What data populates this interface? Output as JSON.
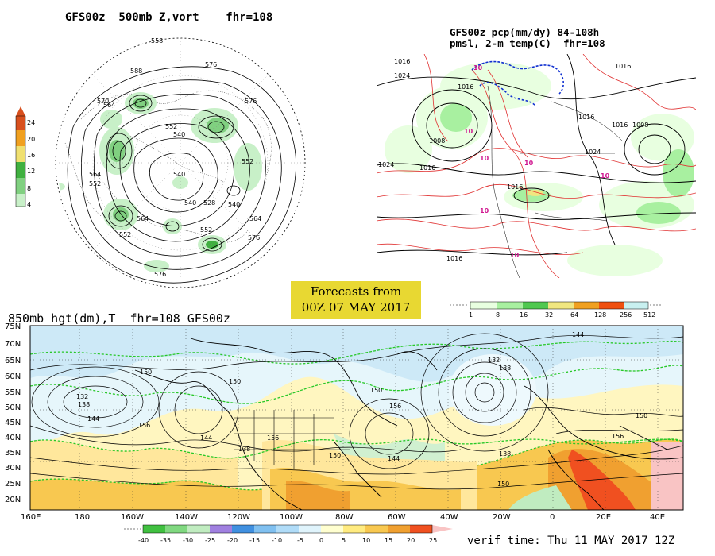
{
  "panels": {
    "vort": {
      "title": "GFS00z  500mb Z,vort    fhr=108",
      "colorbar": {
        "ticks": [
          "24",
          "20",
          "16",
          "12",
          "8",
          "4"
        ],
        "colors": [
          "#d8501e",
          "#f0a020",
          "#f0e070",
          "#40b040",
          "#80d080",
          "#c8f0c8"
        ]
      },
      "contour_labels": [
        "558",
        "576",
        "588",
        "570",
        "564",
        "552",
        "540",
        "564",
        "552",
        "540",
        "564",
        "552",
        "576",
        "576",
        "564",
        "552",
        "576",
        "540",
        "528",
        "540",
        "552"
      ]
    },
    "pcp": {
      "title_line1": "GFS00z pcp(mm/dy) 84-108h",
      "title_line2": "pmsl, 2-m temp(C)  fhr=108",
      "isobar_labels": [
        "1016",
        "1024",
        "1016",
        "1008",
        "1024",
        "1016",
        "1016",
        "1016",
        "1008",
        "1016",
        "1024",
        "1016",
        "1016"
      ],
      "temp_labels": [
        "10",
        "10",
        "10",
        "10",
        "10",
        "10",
        "10"
      ],
      "colorbar": {
        "ticks": [
          "1",
          "8",
          "16",
          "32",
          "64",
          "128",
          "256",
          "512"
        ],
        "colors": [
          "#e8ffe0",
          "#a8f0a0",
          "#50c850",
          "#f0e680",
          "#f0a020",
          "#f05010",
          "#c8f0f0"
        ]
      }
    },
    "h850": {
      "title": "850mb hgt(dm),T  fhr=108 GFS00z",
      "lat_labels": [
        "75N",
        "70N",
        "65N",
        "60N",
        "55N",
        "50N",
        "45N",
        "40N",
        "35N",
        "30N",
        "25N",
        "20N"
      ],
      "lon_labels": [
        "160E",
        "180",
        "160W",
        "140W",
        "120W",
        "100W",
        "80W",
        "60W",
        "40W",
        "20W",
        "0",
        "20E",
        "40E"
      ],
      "height_labels": [
        "144",
        "150",
        "132",
        "138",
        "144",
        "156",
        "150",
        "150",
        "144",
        "156",
        "138",
        "156",
        "150",
        "144",
        "150",
        "132",
        "138",
        "150",
        "138",
        "156"
      ],
      "colorbar": {
        "ticks": [
          "-40",
          "-35",
          "-30",
          "-25",
          "-20",
          "-15",
          "-10",
          "-5",
          "0",
          "5",
          "10",
          "15",
          "20",
          "25"
        ],
        "colors": [
          "#40c040",
          "#80d880",
          "#c0ecc0",
          "#a080e0",
          "#4090e0",
          "#80c0f0",
          "#b0dcf8",
          "#e0f4fc",
          "#ffffd0",
          "#ffeb80",
          "#f8c850",
          "#f0a030",
          "#f05020"
        ]
      }
    }
  },
  "forecast_badge": {
    "line1": "Forecasts from",
    "line2": "00Z 07 MAY 2017"
  },
  "verif_time": "verif time: Thu 11 MAY 2017 12Z"
}
